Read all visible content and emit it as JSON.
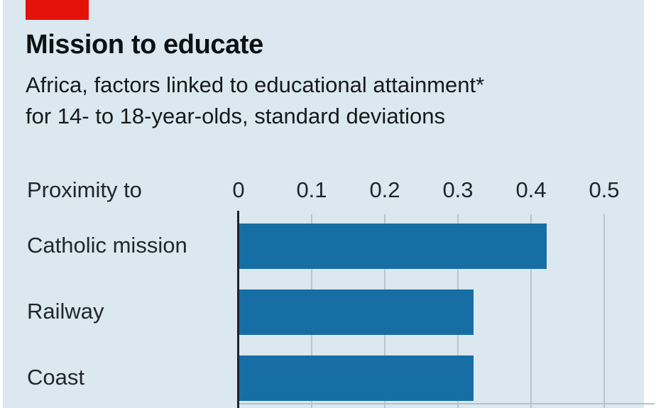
{
  "panel": {
    "background_color": "#dbe8ef",
    "margin_color": "#ffffff",
    "accent_tab_color": "#e3120b"
  },
  "header": {
    "title": "Mission to educate",
    "subtitle_line1": "Africa, factors linked to educational attainment*",
    "subtitle_line2": "for 14- to 18-year-olds, standard deviations"
  },
  "chart_data": {
    "type": "bar",
    "orientation": "horizontal",
    "title": "Mission to educate",
    "subtitle": "Africa, factors linked to educational attainment* for 14- to 18-year-olds, standard deviations",
    "row_group_label": "Proximity to",
    "categories": [
      "Catholic mission",
      "Railway",
      "Coast"
    ],
    "values": [
      0.42,
      0.32,
      0.32
    ],
    "xlabel": "",
    "ylabel": "",
    "xlim": [
      0,
      0.5
    ],
    "xticks": [
      0,
      0.1,
      0.2,
      0.3,
      0.4,
      0.5
    ],
    "xtick_labels": [
      "0",
      "0.1",
      "0.2",
      "0.3",
      "0.4",
      "0.5"
    ],
    "grid": true,
    "legend": "none",
    "bar_color": "#176ea5",
    "gridline_color": "#b7c6ce",
    "axis_line_color": "#1b242c",
    "text_color": "#20262b"
  }
}
